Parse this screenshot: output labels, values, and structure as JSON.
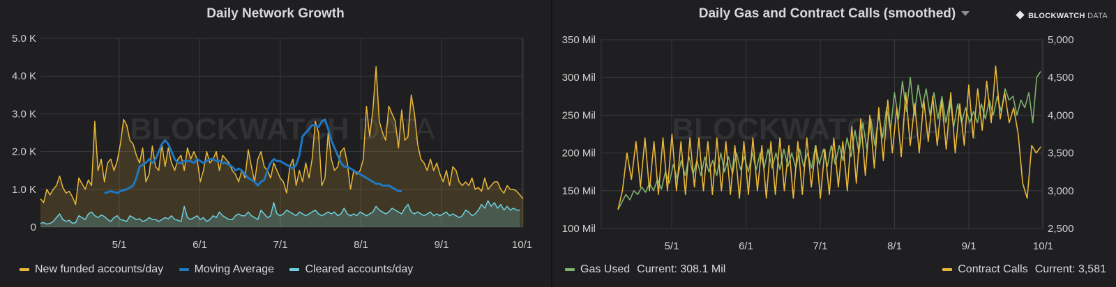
{
  "watermark": {
    "bold": "BLOCKWATCH",
    "light": "DATA"
  },
  "brand": {
    "bold": "BLOCKWATCH",
    "light": "DATA",
    "icon": "diamond-icon"
  },
  "chart_data": [
    {
      "type": "line",
      "title": "Daily Network Growth",
      "x_tick_labels": [
        "5/1",
        "6/1",
        "7/1",
        "8/1",
        "9/1",
        "10/1"
      ],
      "y_tick_labels": [
        "0",
        "1.0 K",
        "2.0 K",
        "3.0 K",
        "4.0 K",
        "5.0 K"
      ],
      "ylim": [
        0,
        5000
      ],
      "grid": true,
      "legend_position": "bottom",
      "series": [
        {
          "name": "New funded accounts/day",
          "color": "#eab839",
          "fill": true,
          "values": [
            750,
            650,
            1000,
            850,
            1000,
            1100,
            1350,
            1050,
            900,
            950,
            800,
            600,
            1300,
            1150,
            1000,
            1250,
            1100,
            2800,
            1500,
            1800,
            1200,
            1700,
            1800,
            1500,
            1750,
            2200,
            2850,
            2700,
            2300,
            2200,
            1900,
            1700,
            2100,
            1200,
            1400,
            2150,
            1600,
            1500,
            2200,
            1600,
            2100,
            1700,
            1500,
            1800,
            1900,
            1500,
            2100,
            1800,
            2000,
            1800,
            1200,
            1500,
            2000,
            1700,
            1800,
            2000,
            1500,
            1900,
            1800,
            1700,
            1500,
            1400,
            1200,
            1500,
            1300,
            2050,
            1600,
            1200,
            1800,
            2000,
            1600,
            1500,
            1300,
            1700,
            1500,
            1300,
            1200,
            900,
            1600,
            1800,
            1100,
            1500,
            1200,
            1700,
            1300,
            1800,
            2800,
            2500,
            1100,
            1300,
            2500,
            1800,
            1500,
            1600,
            2000,
            2100,
            1700,
            1000,
            1500,
            1400,
            1500,
            1800,
            3200,
            2400,
            3100,
            4250,
            2800,
            2500,
            2300,
            3200,
            3000,
            2800,
            2100,
            3100,
            2300,
            2400,
            3500,
            3000,
            2200,
            1800,
            1700,
            1500,
            1800,
            1500,
            1700,
            1400,
            1200,
            1500,
            1100,
            1600,
            1500,
            1200,
            1100,
            1200,
            1100,
            1300,
            1000,
            1050,
            950,
            1300,
            1000,
            1100,
            1200,
            1200,
            1000,
            900,
            1100,
            1000,
            1000,
            950,
            850,
            750
          ]
        },
        {
          "name": "Moving Average",
          "color": "#1f78c1",
          "fill": false,
          "x_start_index": 20,
          "values": [
            900,
            920,
            950,
            930,
            900,
            950,
            980,
            1000,
            1050,
            1100,
            1300,
            1600,
            1650,
            1700,
            1800,
            1700,
            1800,
            2000,
            2200,
            2300,
            2200,
            2000,
            1800,
            1700,
            1700,
            1750,
            1750,
            1750,
            1700,
            1800,
            1750,
            1700,
            1750,
            1800,
            1800,
            1750,
            1750,
            1700,
            1700,
            1650,
            1600,
            1500,
            1550,
            1500,
            1400,
            1300,
            1250,
            1200,
            1100,
            1200,
            1250,
            1500,
            1700,
            1800,
            1750,
            1750,
            1700,
            1650,
            1600,
            1550,
            1650,
            1900,
            2400,
            2500,
            2600,
            2700,
            2700,
            2650,
            2800,
            2850,
            2600,
            2300,
            2100,
            1900,
            1700,
            1600,
            1600,
            1550,
            1500,
            1450,
            1400,
            1350,
            1300,
            1250,
            1200,
            1150,
            1150,
            1100,
            1100,
            1100,
            1050,
            1000,
            950,
            950
          ]
        },
        {
          "name": "Cleared accounts/day",
          "color": "#6ed0e0",
          "fill": true,
          "values": [
            100,
            120,
            80,
            100,
            150,
            250,
            350,
            200,
            150,
            180,
            100,
            120,
            300,
            250,
            200,
            350,
            400,
            300,
            250,
            320,
            280,
            200,
            150,
            250,
            300,
            200,
            180,
            150,
            300,
            250,
            200,
            220,
            150,
            180,
            250,
            200,
            200,
            150,
            200,
            250,
            220,
            300,
            200,
            180,
            150,
            550,
            250,
            200,
            250,
            300,
            200,
            250,
            150,
            200,
            300,
            250,
            400,
            300,
            250,
            200,
            200,
            300,
            350,
            300,
            300,
            400,
            300,
            250,
            200,
            450,
            350,
            250,
            300,
            650,
            350,
            300,
            350,
            450,
            400,
            350,
            300,
            400,
            350,
            300,
            350,
            400,
            450,
            350,
            300,
            350,
            400,
            350,
            400,
            300,
            350,
            500,
            350,
            300,
            350,
            300,
            400,
            350,
            300,
            350,
            400,
            550,
            450,
            400,
            350,
            400,
            500,
            450,
            400,
            350,
            500,
            600,
            400,
            350,
            400,
            350,
            300,
            350,
            400,
            300,
            350,
            300,
            350,
            400,
            300,
            350,
            300,
            250,
            300,
            450,
            400,
            300,
            350,
            450,
            600,
            500,
            700,
            550,
            650,
            500,
            600,
            450,
            550,
            450,
            500,
            450,
            450
          ]
        }
      ]
    },
    {
      "type": "line",
      "title": "Daily Gas and Contract Calls (smoothed)",
      "x_tick_labels": [
        "5/1",
        "6/1",
        "7/1",
        "8/1",
        "9/1",
        "10/1"
      ],
      "y_left_tick_labels": [
        "100 Mil",
        "150 Mil",
        "200 Mil",
        "250 Mil",
        "300 Mil",
        "350 Mil"
      ],
      "y_right_tick_labels": [
        "2,500",
        "3,000",
        "3,500",
        "4,000",
        "4,500",
        "5,000"
      ],
      "ylim_left": [
        100,
        350
      ],
      "ylim_right": [
        2500,
        5000
      ],
      "grid": true,
      "legend_position": "bottom",
      "series": [
        {
          "name": "Gas Used",
          "color": "#7eb26d",
          "axis": "left",
          "current": "Current: 308.1 Mil",
          "values": [
            125,
            135,
            145,
            138,
            150,
            145,
            155,
            148,
            160,
            150,
            165,
            152,
            175,
            160,
            185,
            165,
            190,
            170,
            195,
            172,
            190,
            170,
            195,
            175,
            190,
            170,
            200,
            175,
            195,
            172,
            200,
            178,
            195,
            175,
            200,
            178,
            200,
            180,
            205,
            180,
            200,
            178,
            205,
            182,
            200,
            180,
            205,
            182,
            200,
            180,
            210,
            185,
            205,
            182,
            210,
            185,
            210,
            190,
            220,
            195,
            230,
            200,
            240,
            205,
            245,
            210,
            250,
            220,
            260,
            230,
            280,
            245,
            295,
            255,
            300,
            250,
            290,
            260,
            285,
            250,
            280,
            245,
            275,
            240,
            270,
            235,
            265,
            240,
            260,
            240,
            255,
            240,
            265,
            245,
            270,
            250,
            275,
            255,
            285,
            270,
            275,
            250,
            270,
            260,
            280,
            240,
            300,
            308
          ]
        },
        {
          "name": "Contract Calls",
          "color": "#eab839",
          "axis": "right",
          "current": "Current: 3,581",
          "values": [
            2750,
            3000,
            3500,
            3150,
            3650,
            3050,
            3700,
            3000,
            3650,
            2950,
            3700,
            3000,
            3750,
            3000,
            3650,
            2950,
            3700,
            3050,
            3700,
            3000,
            3650,
            2950,
            3700,
            3000,
            3650,
            2950,
            3600,
            2900,
            3650,
            2950,
            3700,
            3000,
            3600,
            2900,
            3650,
            2950,
            3700,
            3000,
            3600,
            2900,
            3650,
            2950,
            3700,
            3050,
            3600,
            2900,
            3550,
            2950,
            3700,
            3050,
            3650,
            3000,
            3850,
            3100,
            3950,
            3200,
            4000,
            3300,
            4100,
            3400,
            4200,
            3500,
            4100,
            3450,
            4300,
            3600,
            4150,
            3500,
            4200,
            3650,
            4250,
            3600,
            4200,
            3550,
            4300,
            3500,
            4150,
            3600,
            4400,
            3700,
            4350,
            3800,
            4450,
            3900,
            4650,
            3950,
            4300,
            3900,
            4100,
            3750,
            3100,
            2900,
            3600,
            3500,
            3581
          ]
        }
      ]
    }
  ]
}
